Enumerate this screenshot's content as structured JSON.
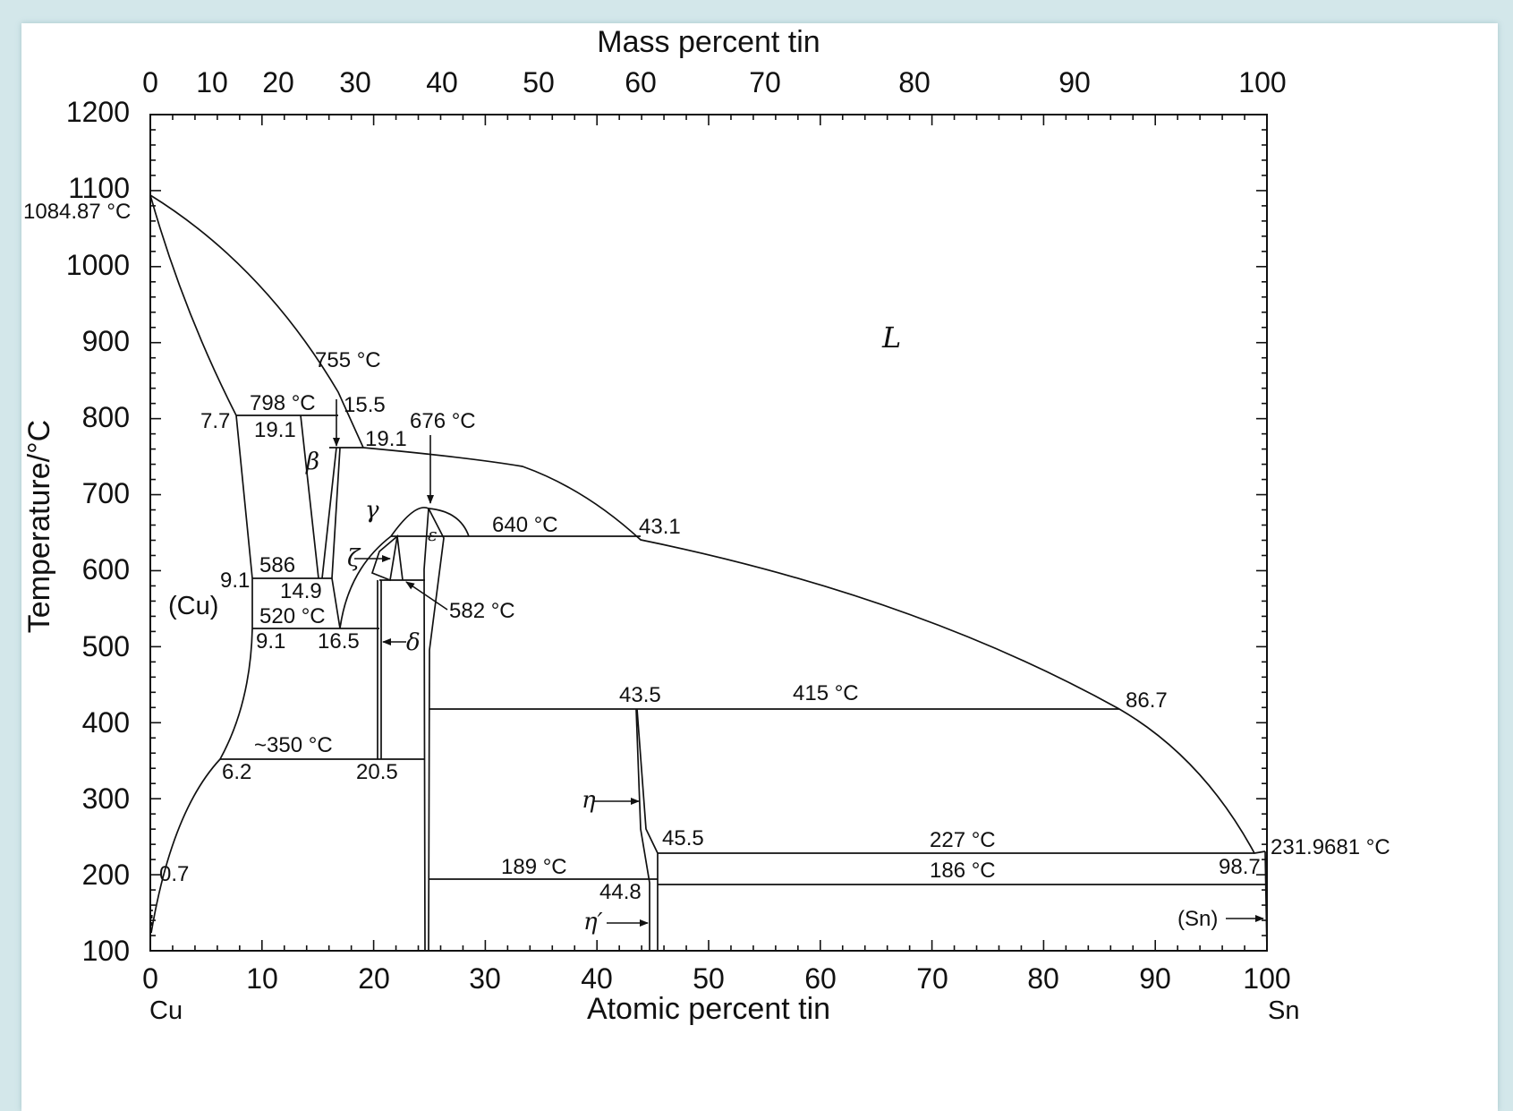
{
  "diagram": {
    "top_axis": {
      "title": "Mass percent tin",
      "ticks": [
        "0",
        "10",
        "20",
        "30",
        "40",
        "50",
        "60",
        "70",
        "80",
        "90",
        "100"
      ]
    },
    "bottom_axis": {
      "title": "Atomic percent tin",
      "ticks": [
        "0",
        "10",
        "20",
        "30",
        "40",
        "50",
        "60",
        "70",
        "80",
        "90",
        "100"
      ],
      "left_element": "Cu",
      "right_element": "Sn"
    },
    "left_axis": {
      "title": "Temperature/°C",
      "ticks": [
        "100",
        "200",
        "300",
        "400",
        "500",
        "600",
        "700",
        "800",
        "900",
        "1000",
        "1100",
        "1200"
      ]
    },
    "labels": {
      "cu_melt": "1084.87 °C",
      "sn_melt": "231.9681 °C",
      "t755": "755 °C",
      "t798": "798 °C",
      "c15_5": "15.5",
      "c7_7": "7.7",
      "c19_1a": "19.1",
      "c19_1b": "19.1",
      "t676": "676 °C",
      "t640": "640 °C",
      "c43_1": "43.1",
      "t586": "586",
      "c9_1a": "9.1",
      "c14_9": "14.9",
      "t520": "520 °C",
      "c9_1b": "9.1",
      "c16_5": "16.5",
      "t582": "582 °C",
      "c43_5": "43.5",
      "t415": "415 °C",
      "c86_7": "86.7",
      "t350": "~350 °C",
      "c6_2": "6.2",
      "c20_5": "20.5",
      "c45_5": "45.5",
      "t227": "227 °C",
      "t189": "189 °C",
      "t186": "186 °C",
      "c98_7": "98.7",
      "c44_8": "44.8",
      "c0_7": "0.7"
    },
    "phases": {
      "liquid": "L",
      "cu": "(Cu)",
      "sn": "(Sn)",
      "beta": "β",
      "gamma": "γ",
      "epsilon": "ε",
      "zeta": "ζ",
      "delta": "δ",
      "eta": "η",
      "eta_prime": "η′"
    }
  }
}
